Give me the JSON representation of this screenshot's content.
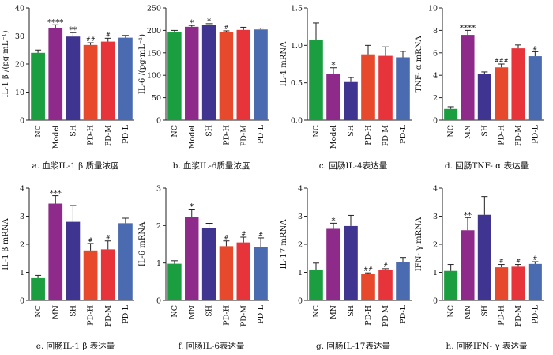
{
  "chart_data": [
    {
      "type": "bar",
      "ylabel": "IL-1 β /(pg·mL⁻¹)",
      "caption": "a.  血浆IL-1 β 质量浓度",
      "categories": [
        "NC",
        "Model",
        "SH",
        "PD-H",
        "PD-M",
        "PD-L"
      ],
      "values": [
        24.0,
        32.8,
        29.8,
        26.8,
        28.0,
        29.4
      ],
      "errors": [
        1.0,
        1.2,
        1.4,
        0.8,
        1.2,
        0.8
      ],
      "colors": [
        "#1a9e40",
        "#8d2a8a",
        "#3f3590",
        "#e7492c",
        "#e7333a",
        "#4b6bb0"
      ],
      "annotations": [
        "",
        "****",
        "**",
        "##",
        "#",
        ""
      ],
      "ylim": [
        0,
        40
      ],
      "yticks": [
        0,
        10,
        20,
        30,
        40
      ]
    },
    {
      "type": "bar",
      "ylabel": "IL-6 /(pg·mL⁻¹)",
      "caption": "b.  血浆IL-6质量浓度",
      "categories": [
        "NC",
        "Model",
        "SH",
        "PD-H",
        "PD-M",
        "PD-L"
      ],
      "values": [
        196,
        208,
        212,
        196,
        201,
        202
      ],
      "errors": [
        4,
        3,
        3,
        3,
        6,
        3
      ],
      "colors": [
        "#1a9e40",
        "#8d2a8a",
        "#3f3590",
        "#e7492c",
        "#e7333a",
        "#4b6bb0"
      ],
      "annotations": [
        "",
        "*",
        "*",
        "#",
        "",
        ""
      ],
      "ylim": [
        0,
        250
      ],
      "yticks": [
        0,
        50,
        100,
        150,
        200,
        250
      ]
    },
    {
      "type": "bar",
      "ylabel": "IL-4 mRNA",
      "caption": "c.  回肠IL-4表达量",
      "categories": [
        "NC",
        "Model",
        "SH",
        "PD-H",
        "PD-M",
        "PD-L"
      ],
      "values": [
        1.07,
        0.62,
        0.51,
        0.88,
        0.86,
        0.84
      ],
      "errors": [
        0.23,
        0.08,
        0.06,
        0.12,
        0.12,
        0.08
      ],
      "colors": [
        "#1a9e40",
        "#8d2a8a",
        "#3f3590",
        "#e7492c",
        "#e7333a",
        "#4b6bb0"
      ],
      "annotations": [
        "",
        "*",
        "",
        "",
        "",
        ""
      ],
      "ylim": [
        0,
        1.5
      ],
      "yticks": [
        0.0,
        0.5,
        1.0,
        1.5
      ]
    },
    {
      "type": "bar",
      "ylabel": "TNF- α  mRNA",
      "caption": "d.  回肠TNF- α 表达量",
      "categories": [
        "NC",
        "MN",
        "SH",
        "PD-H",
        "PD-M",
        "PD-L"
      ],
      "values": [
        1.0,
        7.6,
        4.1,
        4.7,
        6.4,
        5.7
      ],
      "errors": [
        0.2,
        0.4,
        0.2,
        0.3,
        0.3,
        0.4
      ],
      "colors": [
        "#1a9e40",
        "#8d2a8a",
        "#3f3590",
        "#e7492c",
        "#e7333a",
        "#4b6bb0"
      ],
      "annotations": [
        "",
        "****",
        "",
        "###",
        "",
        "#"
      ],
      "ylim": [
        0,
        10
      ],
      "yticks": [
        0,
        2,
        4,
        6,
        8,
        10
      ]
    },
    {
      "type": "bar",
      "ylabel": "IL-1 β  mRNA",
      "caption": "e.  回肠IL-1 β 表达量",
      "categories": [
        "NC",
        "MN",
        "SH",
        "PD-H",
        "PD-M",
        "PD-L"
      ],
      "values": [
        0.82,
        3.45,
        2.8,
        1.78,
        1.82,
        2.75
      ],
      "errors": [
        0.07,
        0.28,
        0.58,
        0.25,
        0.3,
        0.18
      ],
      "colors": [
        "#1a9e40",
        "#8d2a8a",
        "#3f3590",
        "#e7492c",
        "#e7333a",
        "#4b6bb0"
      ],
      "annotations": [
        "",
        "***",
        "",
        "#",
        "#",
        ""
      ],
      "ylim": [
        0,
        4
      ],
      "yticks": [
        0,
        1,
        2,
        3,
        4
      ]
    },
    {
      "type": "bar",
      "ylabel": "IL-6 mRNA",
      "caption": "f.  回肠IL-6表达量",
      "categories": [
        "NC",
        "MN",
        "SH",
        "PD-H",
        "PD-M",
        "PD-L"
      ],
      "values": [
        0.98,
        2.22,
        1.93,
        1.45,
        1.55,
        1.42
      ],
      "errors": [
        0.08,
        0.22,
        0.13,
        0.14,
        0.14,
        0.25
      ],
      "colors": [
        "#1a9e40",
        "#8d2a8a",
        "#3f3590",
        "#e7492c",
        "#e7333a",
        "#4b6bb0"
      ],
      "annotations": [
        "",
        "*",
        "",
        "#",
        "#",
        "#"
      ],
      "ylim": [
        0,
        3
      ],
      "yticks": [
        0,
        1,
        2,
        3
      ]
    },
    {
      "type": "bar",
      "ylabel": "IL-17 mRNA",
      "caption": "g.  回肠IL-17表达量",
      "categories": [
        "NC",
        "MN",
        "SH",
        "PD-H",
        "PD-M",
        "PD-L"
      ],
      "values": [
        1.08,
        2.55,
        2.65,
        0.93,
        1.08,
        1.38
      ],
      "errors": [
        0.25,
        0.2,
        0.38,
        0.05,
        0.05,
        0.15
      ],
      "colors": [
        "#1a9e40",
        "#8d2a8a",
        "#3f3590",
        "#e7492c",
        "#e7333a",
        "#4b6bb0"
      ],
      "annotations": [
        "",
        "*",
        "",
        "##",
        "#",
        ""
      ],
      "ylim": [
        0,
        4
      ],
      "yticks": [
        0,
        1,
        2,
        3,
        4
      ]
    },
    {
      "type": "bar",
      "ylabel": "IFN- γ  mRNA",
      "caption": "h.  回肠IFN- γ 表达量",
      "categories": [
        "NC",
        "MN",
        "SH",
        "PD-H",
        "PD-M",
        "PD-L"
      ],
      "values": [
        1.05,
        2.5,
        3.05,
        1.18,
        1.2,
        1.3
      ],
      "errors": [
        0.23,
        0.45,
        0.65,
        0.1,
        0.08,
        0.08
      ],
      "colors": [
        "#1a9e40",
        "#8d2a8a",
        "#3f3590",
        "#e7492c",
        "#e7333a",
        "#4b6bb0"
      ],
      "annotations": [
        "",
        "**",
        "",
        "#",
        "#",
        "#"
      ],
      "ylim": [
        0,
        4
      ],
      "yticks": [
        0,
        1,
        2,
        3,
        4
      ]
    }
  ]
}
